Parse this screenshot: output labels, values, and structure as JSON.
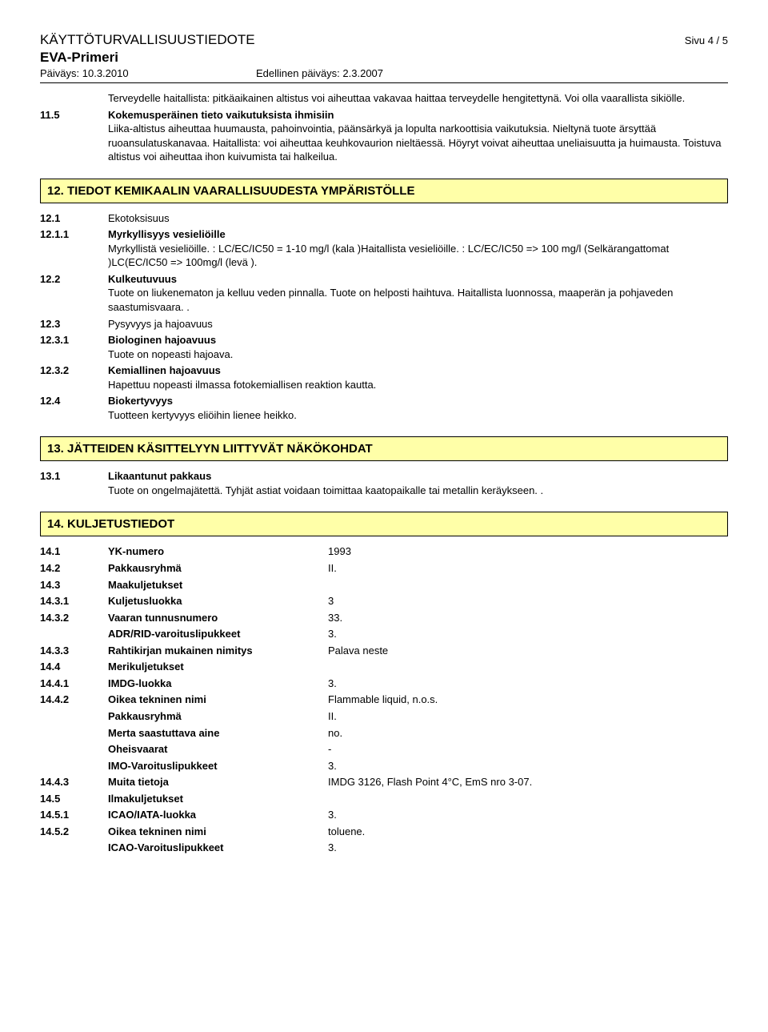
{
  "header": {
    "doc_title": "KÄYTTÖTURVALLISUUSTIEDOTE",
    "page_label": "Sivu  4 / 5",
    "product": "EVA-Primeri",
    "date_left": "Päiväys: 10.3.2010",
    "date_right": "Edellinen päiväys: 2.3.2007"
  },
  "s11_intro": "Terveydelle haitallista: pitkäaikainen altistus voi aiheuttaa vakavaa haittaa terveydelle hengitettynä.  Voi olla vaarallista sikiölle.",
  "s11_5_num": "11.5",
  "s11_5_label": "Kokemusperäinen tieto vaikutuksista ihmisiin",
  "s11_5_text": "Liika-altistus aiheuttaa huumausta, pahoinvointia, päänsärkyä ja lopulta narkoottisia vaikutuksia. Nieltynä tuote ärsyttää ruoansulatuskanavaa.   Haitallista: voi aiheuttaa keuhkovaurion nieltäessä.  Höyryt voivat aiheuttaa uneliaisuutta ja huimausta.  Toistuva altistus voi aiheuttaa ihon kuivumista tai halkeilua.",
  "sec12_title": "12. TIEDOT KEMIKAALIN VAARALLISUUDESTA YMPÄRISTÖLLE",
  "s12_1_num": "12.1",
  "s12_1_label": "Ekotoksisuus",
  "s12_1_1_num": "12.1.1",
  "s12_1_1_label": "Myrkyllisyys vesieliöille",
  "s12_1_1_text": "Myrkyllistä vesieliöille.  : LC/EC/IC50 = 1-10 mg/l (kala )Haitallista vesieliöille.  : LC/EC/IC50 => 100 mg/l (Selkärangattomat )LC(EC/IC50 => 100mg/l (levä ).",
  "s12_2_num": "12.2",
  "s12_2_label": "Kulkeutuvuus",
  "s12_2_text": "Tuote on liukenematon ja kelluu veden pinnalla.  Tuote on helposti haihtuva.  Haitallista luonnossa, maaperän ja pohjaveden saastumisvaara. .",
  "s12_3_num": "12.3",
  "s12_3_label": "Pysyvyys ja hajoavuus",
  "s12_3_1_num": "12.3.1",
  "s12_3_1_label": "Biologinen hajoavuus",
  "s12_3_1_text": "Tuote on nopeasti hajoava.",
  "s12_3_2_num": "12.3.2",
  "s12_3_2_label": "Kemiallinen hajoavuus",
  "s12_3_2_text": "Hapettuu nopeasti ilmassa fotokemiallisen reaktion kautta.",
  "s12_4_num": "12.4",
  "s12_4_label": "Biokertyvyys",
  "s12_4_text": "Tuotteen kertyvyys eliöihin lienee heikko.",
  "sec13_title": "13. JÄTTEIDEN KÄSITTELYYN LIITTYVÄT NÄKÖKOHDAT",
  "s13_1_num": "13.1",
  "s13_1_label": "Likaantunut pakkaus",
  "s13_1_text": "Tuote on ongelmajätettä. Tyhjät astiat voidaan toimittaa kaatopaikalle tai metallin keräykseen. .",
  "sec14_title": "14. KULJETUSTIEDOT",
  "kv": [
    {
      "num": "14.1",
      "label": "YK-numero",
      "value": "1993"
    },
    {
      "num": "14.2",
      "label": "Pakkausryhmä",
      "value": "II."
    },
    {
      "num": "14.3",
      "label": "Maakuljetukset",
      "value": ""
    },
    {
      "num": "14.3.1",
      "label": "Kuljetusluokka",
      "value": "3"
    },
    {
      "num": "14.3.2",
      "label": "Vaaran tunnusnumero",
      "value": "33."
    },
    {
      "num": "",
      "label": "ADR/RID-varoituslipukkeet",
      "value": "3."
    },
    {
      "num": "14.3.3",
      "label": "Rahtikirjan mukainen nimitys",
      "value": "Palava neste"
    },
    {
      "num": "14.4",
      "label": "Merikuljetukset",
      "value": ""
    },
    {
      "num": "14.4.1",
      "label": "IMDG-luokka",
      "value": "3."
    },
    {
      "num": "14.4.2",
      "label": "Oikea tekninen nimi",
      "value": "Flammable liquid, n.o.s."
    },
    {
      "num": "",
      "label": "Pakkausryhmä",
      "value": "II."
    },
    {
      "num": "",
      "label": "Merta saastuttava aine",
      "value": "no."
    },
    {
      "num": "",
      "label": "Oheisvaarat",
      "value": "-"
    },
    {
      "num": "",
      "label": "IMO-Varoituslipukkeet",
      "value": "3."
    },
    {
      "num": "14.4.3",
      "label": "Muita tietoja",
      "value": "IMDG 3126, Flash Point 4°C, EmS nro 3-07."
    },
    {
      "num": "14.5",
      "label": "Ilmakuljetukset",
      "value": ""
    },
    {
      "num": "14.5.1",
      "label": "ICAO/IATA-luokka",
      "value": "3."
    },
    {
      "num": "14.5.2",
      "label": "Oikea tekninen nimi",
      "value": "toluene."
    },
    {
      "num": "",
      "label": "ICAO-Varoituslipukkeet",
      "value": "3."
    }
  ]
}
